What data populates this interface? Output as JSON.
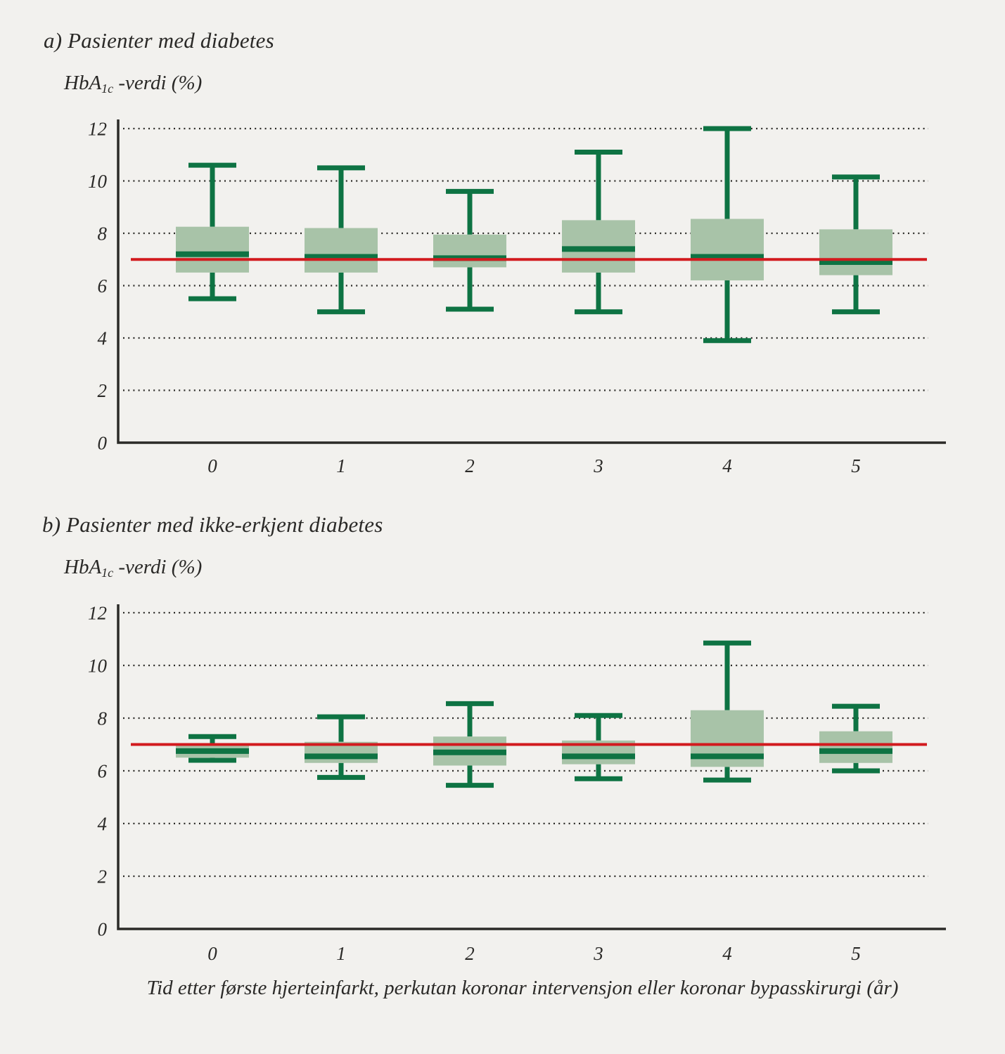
{
  "page": {
    "background": "#f2f1ee"
  },
  "colors": {
    "box_fill": "#a8c3a8",
    "box_line": "#0e7343",
    "reference_line": "#d21a1e",
    "axis": "#2b2a27",
    "grid_dots": "#2b2a27",
    "text": "#2a2927"
  },
  "caption": "Tid etter første hjerteinfarkt, perkutan koronar intervensjon eller koronar bypasskirurgi (år)",
  "chart_data": [
    {
      "type": "boxplot",
      "panel": "a",
      "title": "a) Pasienter med diabetes",
      "ylabel": "HbA1c -verdi (%)",
      "ylabel_parts": {
        "pre": "HbA",
        "sub": "1c",
        "post": " -verdi (%)"
      },
      "xlabel": "Tid etter første hjerteinfarkt, perkutan koronar intervensjon eller koronar bypasskirurgi (år)",
      "categories": [
        "0",
        "1",
        "2",
        "3",
        "4",
        "5"
      ],
      "y_ticks": [
        0,
        2,
        4,
        6,
        8,
        10,
        12
      ],
      "ylim": [
        0,
        12
      ],
      "grid": "dotted-horizontal",
      "reference_line": 7,
      "series": [
        {
          "category": "0",
          "min": 5.5,
          "q1": 6.5,
          "median": 7.2,
          "q3": 8.25,
          "max": 10.6
        },
        {
          "category": "1",
          "min": 5.0,
          "q1": 6.5,
          "median": 7.1,
          "q3": 8.2,
          "max": 10.5
        },
        {
          "category": "2",
          "min": 5.1,
          "q1": 6.7,
          "median": 7.05,
          "q3": 7.95,
          "max": 9.6
        },
        {
          "category": "3",
          "min": 5.0,
          "q1": 6.5,
          "median": 7.4,
          "q3": 8.5,
          "max": 11.1
        },
        {
          "category": "4",
          "min": 3.9,
          "q1": 6.2,
          "median": 7.1,
          "q3": 8.55,
          "max": 12.0
        },
        {
          "category": "5",
          "min": 5.0,
          "q1": 6.4,
          "median": 6.9,
          "q3": 8.15,
          "max": 10.15
        }
      ]
    },
    {
      "type": "boxplot",
      "panel": "b",
      "title": "b) Pasienter med ikke-erkjent diabetes",
      "ylabel": "HbA1c -verdi (%)",
      "ylabel_parts": {
        "pre": "HbA",
        "sub": "1c",
        "post": " -verdi (%)"
      },
      "xlabel": "Tid etter første hjerteinfarkt, perkutan koronar intervensjon eller koronar bypasskirurgi (år)",
      "categories": [
        "0",
        "1",
        "2",
        "3",
        "4",
        "5"
      ],
      "y_ticks": [
        0,
        2,
        4,
        6,
        8,
        10,
        12
      ],
      "ylim": [
        0,
        12
      ],
      "grid": "dotted-horizontal",
      "reference_line": 7,
      "series": [
        {
          "category": "0",
          "min": 6.4,
          "q1": 6.5,
          "median": 6.75,
          "q3": 6.95,
          "max": 7.3
        },
        {
          "category": "1",
          "min": 5.75,
          "q1": 6.3,
          "median": 6.55,
          "q3": 7.1,
          "max": 8.05
        },
        {
          "category": "2",
          "min": 5.45,
          "q1": 6.2,
          "median": 6.7,
          "q3": 7.3,
          "max": 8.55
        },
        {
          "category": "3",
          "min": 5.7,
          "q1": 6.25,
          "median": 6.55,
          "q3": 7.15,
          "max": 8.1
        },
        {
          "category": "4",
          "min": 5.65,
          "q1": 6.15,
          "median": 6.55,
          "q3": 8.3,
          "max": 10.85
        },
        {
          "category": "5",
          "min": 6.0,
          "q1": 6.3,
          "median": 6.75,
          "q3": 7.5,
          "max": 8.45
        }
      ]
    }
  ]
}
